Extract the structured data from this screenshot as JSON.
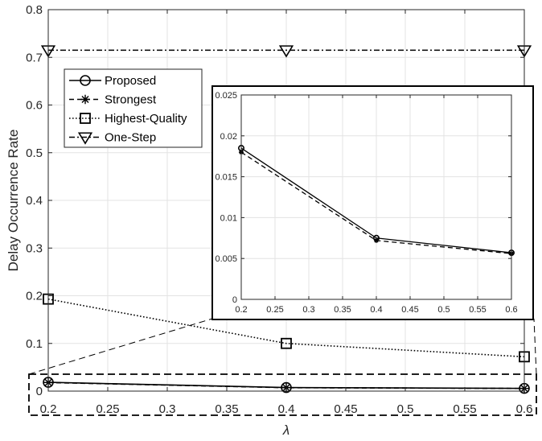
{
  "chart_data": {
    "type": "line",
    "title": "",
    "xlabel": "λ",
    "ylabel": "Delay Occurrence Rate",
    "xlim": [
      0.2,
      0.6
    ],
    "ylim": [
      0,
      0.8
    ],
    "x": [
      0.2,
      0.4,
      0.6
    ],
    "xticks": [
      "0.2",
      "0.25",
      "0.3",
      "0.35",
      "0.4",
      "0.45",
      "0.5",
      "0.55",
      "0.6"
    ],
    "yticks": [
      "0",
      "0.1",
      "0.2",
      "0.3",
      "0.4",
      "0.5",
      "0.6",
      "0.7",
      "0.8"
    ],
    "grid": true,
    "legend_position": "top-left",
    "series": [
      {
        "name": "Proposed",
        "values": [
          0.0185,
          0.0075,
          0.0057
        ],
        "line_style": "solid",
        "marker": "circle",
        "color": "#000000"
      },
      {
        "name": "Strongest",
        "values": [
          0.018,
          0.0072,
          0.0056
        ],
        "line_style": "dashed",
        "marker": "asterisk",
        "color": "#000000"
      },
      {
        "name": "Highest-Quality",
        "values": [
          0.193,
          0.1,
          0.072
        ],
        "line_style": "dotted",
        "marker": "square",
        "color": "#000000"
      },
      {
        "name": "One-Step",
        "values": [
          0.715,
          0.715,
          0.715
        ],
        "line_style": "dashdot",
        "marker": "triangle-down",
        "color": "#000000"
      }
    ],
    "inset": {
      "xlim": [
        0.2,
        0.6
      ],
      "ylim": [
        0,
        0.025
      ],
      "xticks": [
        "0.2",
        "0.25",
        "0.3",
        "0.35",
        "0.4",
        "0.45",
        "0.5",
        "0.55",
        "0.6"
      ],
      "yticks": [
        "0",
        "0.005",
        "0.01",
        "0.015",
        "0.02",
        "0.025"
      ],
      "series_shown": [
        "Proposed",
        "Strongest"
      ]
    }
  }
}
